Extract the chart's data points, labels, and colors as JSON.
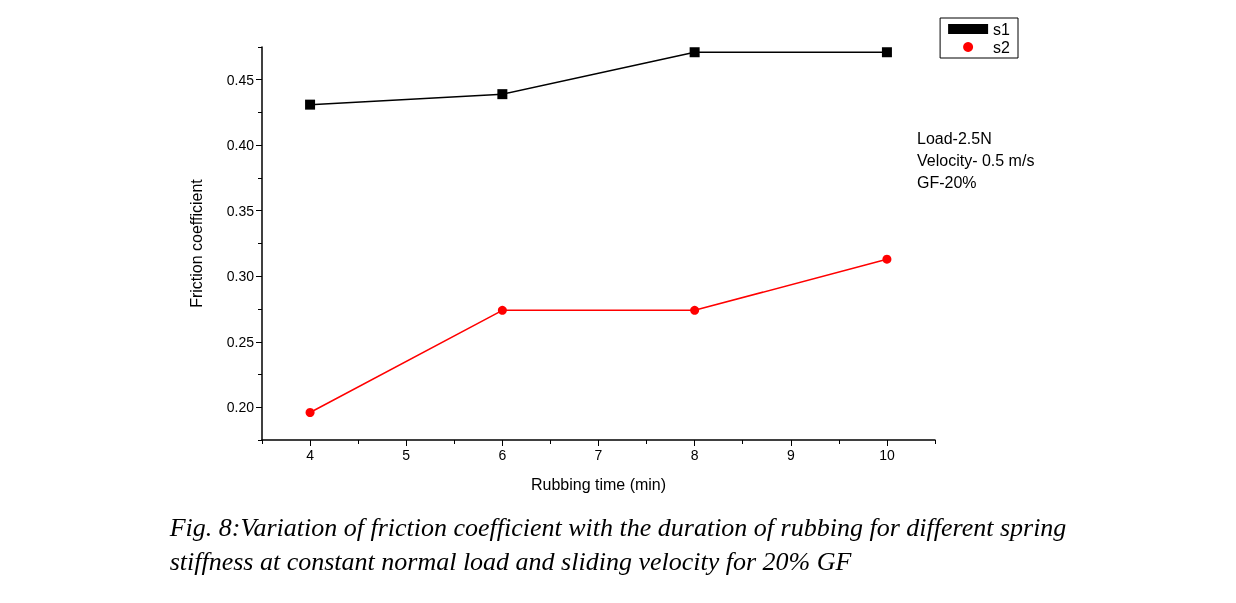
{
  "chart_data": {
    "type": "line",
    "xlabel": "Rubbing time (min)",
    "ylabel": "Friction coefficient",
    "x": [
      4,
      6,
      8,
      10
    ],
    "series": [
      {
        "name": "s1",
        "color": "#000000",
        "marker": "square",
        "values": [
          0.431,
          0.439,
          0.471,
          0.471
        ]
      },
      {
        "name": "s2",
        "color": "#ff0000",
        "marker": "circle",
        "values": [
          0.196,
          0.274,
          0.274,
          0.313
        ]
      }
    ],
    "xlim": [
      3.5,
      10.5
    ],
    "xticks": [
      4,
      5,
      6,
      7,
      8,
      9,
      10
    ],
    "ylim": [
      0.175,
      0.475
    ],
    "yticks": [
      {
        "value": 0.2,
        "label": "0.20"
      },
      {
        "value": 0.25,
        "label": "0.25"
      },
      {
        "value": 0.3,
        "label": "0.30"
      },
      {
        "value": 0.35,
        "label": "0.35"
      },
      {
        "value": 0.4,
        "label": "0.40"
      },
      {
        "value": 0.45,
        "label": "0.45"
      }
    ],
    "grid": false,
    "legend": "top right",
    "line_style": "solid",
    "annotations": [
      "Load-2.5N\nVelocity- 0.5 m/s\nGF-20%",
      "Fig. 8:Variation of friction coefficient with the duration of rubbing for different spring\nstiffness at constant normal load and sliding velocity for 20% GF"
    ]
  }
}
